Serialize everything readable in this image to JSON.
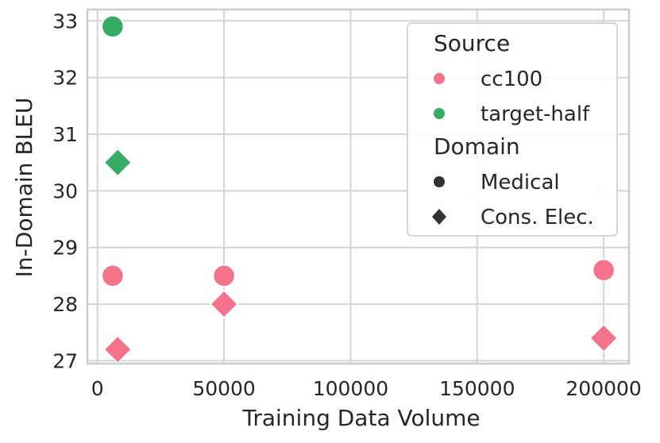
{
  "chart_data": {
    "type": "scatter",
    "xlabel": "Training Data Volume",
    "ylabel": "In-Domain BLEU",
    "xlim": [
      -4000,
      210000
    ],
    "ylim": [
      26.95,
      33.2
    ],
    "xticks": [
      0,
      50000,
      100000,
      150000,
      200000
    ],
    "xtick_labels": [
      "0",
      "50000",
      "100000",
      "150000",
      "200000"
    ],
    "yticks": [
      27,
      28,
      29,
      30,
      31,
      32,
      33
    ],
    "ytick_labels": [
      "27",
      "28",
      "29",
      "30",
      "31",
      "32",
      "33"
    ],
    "grid": true,
    "legend_placement": "top-right",
    "legend": {
      "hue_title": "Source",
      "hue_entries": [
        {
          "label": "cc100",
          "color": "#f5738a"
        },
        {
          "label": "target-half",
          "color": "#36ad64"
        }
      ],
      "style_title": "Domain",
      "style_entries": [
        {
          "label": "Medical",
          "marker": "circle"
        },
        {
          "label": "Cons. Elec.",
          "marker": "diamond"
        }
      ]
    },
    "series": [
      {
        "source": "cc100",
        "domain": "Medical",
        "color": "#f5738a",
        "marker": "circle",
        "points": [
          {
            "x": 6000,
            "y": 28.5
          },
          {
            "x": 50000,
            "y": 28.5
          },
          {
            "x": 200000,
            "y": 28.6
          }
        ]
      },
      {
        "source": "cc100",
        "domain": "Cons. Elec.",
        "color": "#f5738a",
        "marker": "diamond",
        "points": [
          {
            "x": 8000,
            "y": 27.2
          },
          {
            "x": 50000,
            "y": 28.0
          },
          {
            "x": 200000,
            "y": 27.4
          }
        ]
      },
      {
        "source": "target-half",
        "domain": "Medical",
        "color": "#36ad64",
        "marker": "circle",
        "points": [
          {
            "x": 6000,
            "y": 32.9
          }
        ]
      },
      {
        "source": "target-half",
        "domain": "Cons. Elec.",
        "color": "#36ad64",
        "marker": "diamond",
        "points": [
          {
            "x": 8000,
            "y": 30.5
          }
        ]
      }
    ]
  }
}
